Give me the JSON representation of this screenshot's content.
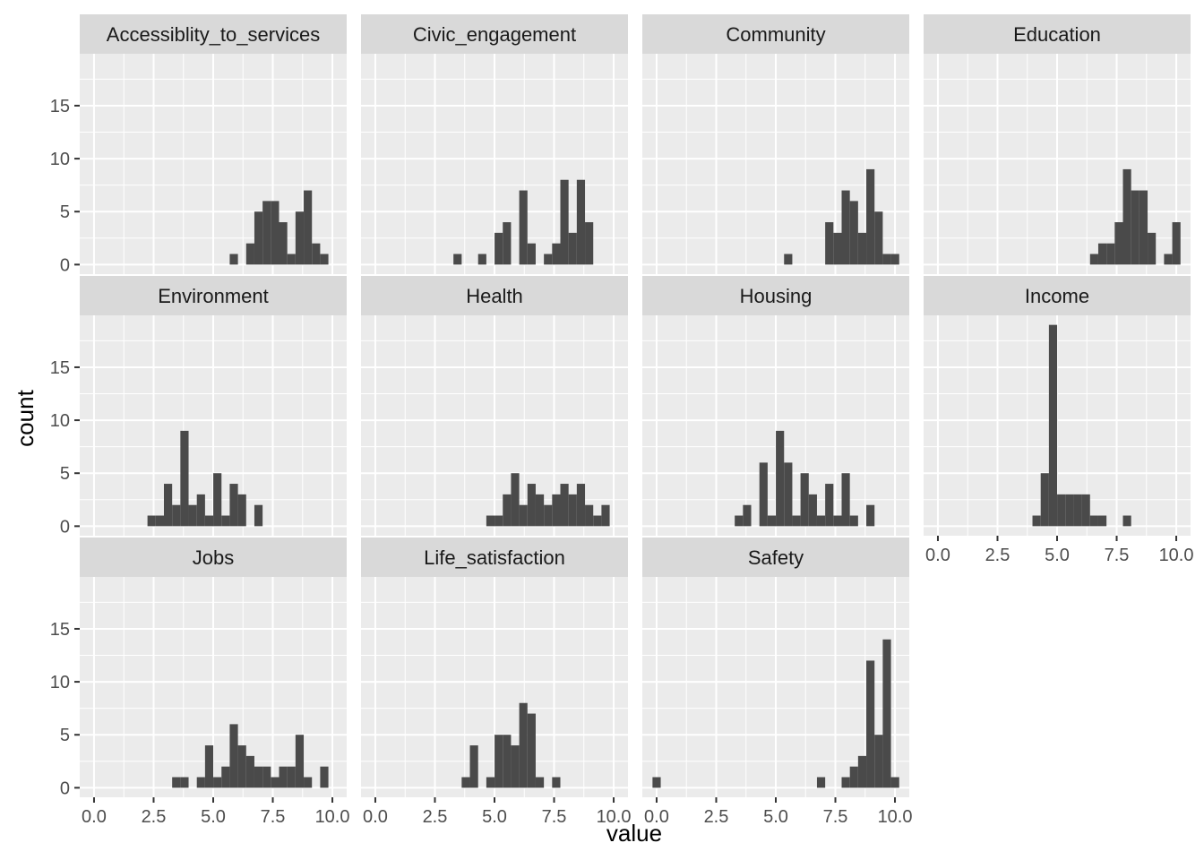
{
  "chart_data": {
    "type": "bar",
    "chart_kind": "faceted histogram",
    "xlabel": "value",
    "ylabel": "count",
    "xlim": [
      -0.6,
      10.6
    ],
    "ylim": [
      -0.9,
      19.9
    ],
    "x_ticks": [
      0,
      2.5,
      5,
      7.5,
      10
    ],
    "x_tick_labels": [
      "0.0",
      "2.5",
      "5.0",
      "7.5",
      "10.0"
    ],
    "y_ticks": [
      0,
      5,
      10,
      15
    ],
    "y_tick_labels": [
      "0",
      "5",
      "10",
      "15"
    ],
    "bin_width": 0.345,
    "bin_start": 0,
    "grid": true,
    "panel_background": "#ebebeb",
    "strip_background": "#d9d9d9",
    "bar_color": "#4a4a4a",
    "grid_color": "#ffffff",
    "facets": [
      {
        "name": "Accessiblity_to_services",
        "bins": [
          [
            17,
            1
          ],
          [
            19,
            2
          ],
          [
            20,
            5
          ],
          [
            21,
            6
          ],
          [
            22,
            6
          ],
          [
            23,
            4
          ],
          [
            24,
            1
          ],
          [
            25,
            5
          ],
          [
            26,
            7
          ],
          [
            27,
            2
          ],
          [
            28,
            1
          ]
        ]
      },
      {
        "name": "Civic_engagement",
        "bins": [
          [
            10,
            1
          ],
          [
            13,
            1
          ],
          [
            15,
            3
          ],
          [
            16,
            4
          ],
          [
            18,
            7
          ],
          [
            19,
            2
          ],
          [
            21,
            1
          ],
          [
            22,
            2
          ],
          [
            23,
            8
          ],
          [
            24,
            3
          ],
          [
            25,
            8
          ],
          [
            26,
            4
          ]
        ]
      },
      {
        "name": "Community",
        "bins": [
          [
            16,
            1
          ],
          [
            21,
            4
          ],
          [
            22,
            3
          ],
          [
            23,
            7
          ],
          [
            24,
            6
          ],
          [
            25,
            3
          ],
          [
            26,
            9
          ],
          [
            27,
            5
          ],
          [
            28,
            1
          ],
          [
            29,
            1
          ]
        ]
      },
      {
        "name": "Education",
        "bins": [
          [
            19,
            1
          ],
          [
            20,
            2
          ],
          [
            21,
            2
          ],
          [
            22,
            4
          ],
          [
            23,
            9
          ],
          [
            24,
            7
          ],
          [
            25,
            7
          ],
          [
            26,
            3
          ],
          [
            28,
            1
          ],
          [
            29,
            4
          ]
        ]
      },
      {
        "name": "Environment",
        "bins": [
          [
            7,
            1
          ],
          [
            8,
            1
          ],
          [
            9,
            4
          ],
          [
            10,
            2
          ],
          [
            11,
            9
          ],
          [
            12,
            2
          ],
          [
            13,
            3
          ],
          [
            14,
            1
          ],
          [
            15,
            5
          ],
          [
            16,
            1
          ],
          [
            17,
            4
          ],
          [
            18,
            3
          ],
          [
            20,
            2
          ]
        ]
      },
      {
        "name": "Health",
        "bins": [
          [
            14,
            1
          ],
          [
            15,
            1
          ],
          [
            16,
            3
          ],
          [
            17,
            5
          ],
          [
            18,
            2
          ],
          [
            19,
            4
          ],
          [
            20,
            3
          ],
          [
            21,
            2
          ],
          [
            22,
            3
          ],
          [
            23,
            4
          ],
          [
            24,
            3
          ],
          [
            25,
            4
          ],
          [
            26,
            2
          ],
          [
            27,
            1
          ],
          [
            28,
            2
          ]
        ]
      },
      {
        "name": "Housing",
        "bins": [
          [
            10,
            1
          ],
          [
            11,
            2
          ],
          [
            13,
            6
          ],
          [
            14,
            1
          ],
          [
            15,
            9
          ],
          [
            16,
            6
          ],
          [
            17,
            1
          ],
          [
            18,
            5
          ],
          [
            19,
            3
          ],
          [
            20,
            1
          ],
          [
            21,
            4
          ],
          [
            22,
            1
          ],
          [
            23,
            5
          ],
          [
            24,
            1
          ],
          [
            26,
            2
          ]
        ]
      },
      {
        "name": "Income",
        "bins": [
          [
            12,
            1
          ],
          [
            13,
            5
          ],
          [
            14,
            19
          ],
          [
            15,
            3
          ],
          [
            16,
            3
          ],
          [
            17,
            3
          ],
          [
            18,
            3
          ],
          [
            19,
            1
          ],
          [
            20,
            1
          ],
          [
            23,
            1
          ]
        ]
      },
      {
        "name": "Jobs",
        "bins": [
          [
            10,
            1
          ],
          [
            11,
            1
          ],
          [
            13,
            1
          ],
          [
            14,
            4
          ],
          [
            15,
            1
          ],
          [
            16,
            2
          ],
          [
            17,
            6
          ],
          [
            18,
            4
          ],
          [
            19,
            3
          ],
          [
            20,
            2
          ],
          [
            21,
            2
          ],
          [
            22,
            1
          ],
          [
            23,
            2
          ],
          [
            24,
            2
          ],
          [
            25,
            5
          ],
          [
            26,
            1
          ],
          [
            28,
            2
          ]
        ]
      },
      {
        "name": "Life_satisfaction",
        "bins": [
          [
            11,
            1
          ],
          [
            12,
            4
          ],
          [
            14,
            1
          ],
          [
            15,
            5
          ],
          [
            16,
            5
          ],
          [
            17,
            4
          ],
          [
            18,
            8
          ],
          [
            19,
            7
          ],
          [
            20,
            1
          ],
          [
            22,
            1
          ]
        ]
      },
      {
        "name": "Safety",
        "bins": [
          [
            0,
            1
          ],
          [
            20,
            1
          ],
          [
            23,
            1
          ],
          [
            24,
            2
          ],
          [
            25,
            3
          ],
          [
            26,
            12
          ],
          [
            27,
            5
          ],
          [
            28,
            14
          ],
          [
            29,
            1
          ]
        ]
      }
    ]
  }
}
